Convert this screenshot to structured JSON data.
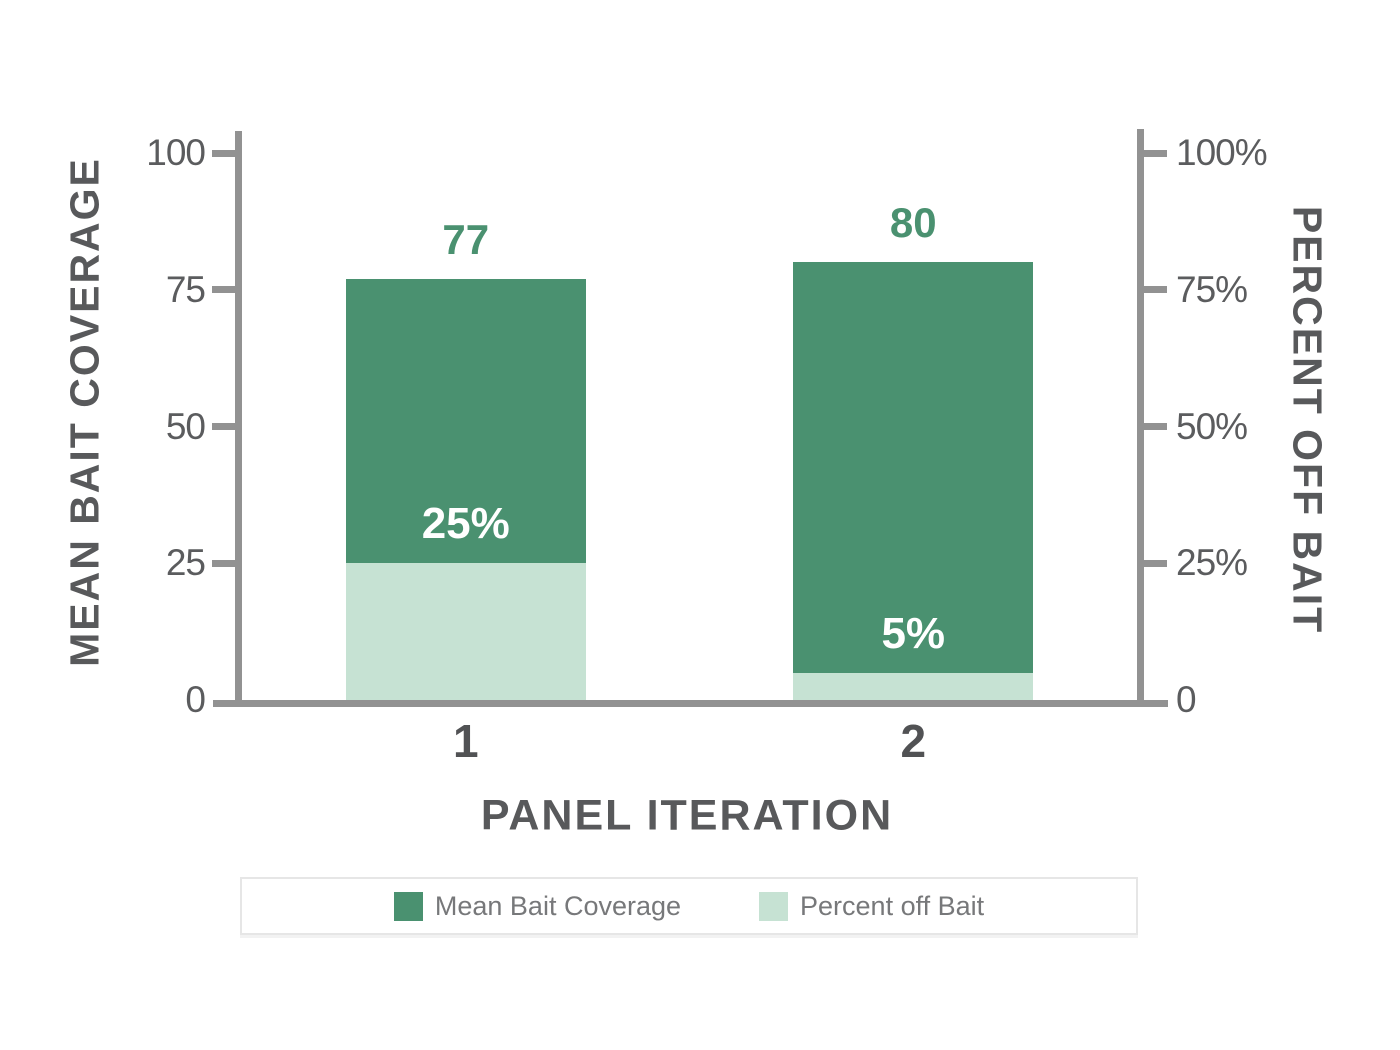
{
  "chart_data": {
    "type": "bar",
    "bar_mode": "overlay",
    "categories": [
      "1",
      "2"
    ],
    "xlabel": "PANEL ITERATION",
    "ylabel_left": "MEAN BAIT COVERAGE",
    "ylabel_right": "PERCENT OFF BAIT",
    "ylim": [
      0,
      100
    ],
    "yticks": [
      0,
      25,
      50,
      75,
      100
    ],
    "ytick_labels_left": [
      "0",
      "25",
      "50",
      "75",
      "100"
    ],
    "ytick_labels_right": [
      "0",
      "25%",
      "50%",
      "75%",
      "100%"
    ],
    "grid": false,
    "legend_position": "bottom",
    "series": [
      {
        "name": "Mean Bait Coverage",
        "axis": "left",
        "values": [
          77,
          80
        ],
        "value_labels": [
          "77",
          "80"
        ],
        "color": "#4A9170"
      },
      {
        "name": "Percent off Bait",
        "axis": "right",
        "values": [
          25,
          5
        ],
        "value_labels": [
          "25%",
          "5%"
        ],
        "color": "#C6E2D3"
      }
    ]
  },
  "colors": {
    "axis": "#929292",
    "tick_label": "#5B5C5E",
    "axis_title": "#58595B",
    "category_label": "#515254",
    "inner_label": "#FFFFFF",
    "legend_text": "#77787A",
    "legend_border": "#E6E6E6",
    "background": "#FFFFFF"
  }
}
